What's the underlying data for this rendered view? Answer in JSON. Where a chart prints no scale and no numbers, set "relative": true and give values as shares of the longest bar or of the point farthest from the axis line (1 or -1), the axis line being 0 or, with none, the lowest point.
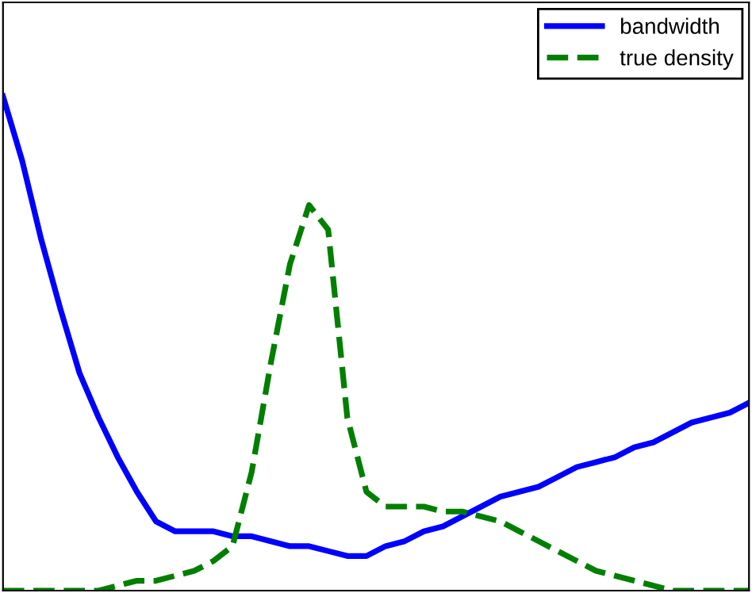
{
  "chart_data": {
    "type": "line",
    "relative": true,
    "tick_labels": false,
    "legend": "top right",
    "categories": [
      null,
      null,
      null,
      null,
      null,
      null,
      null,
      null,
      null,
      null,
      null,
      null,
      null,
      null,
      null,
      null,
      null,
      null,
      null,
      null,
      null,
      null,
      null,
      null,
      null,
      null,
      null,
      null,
      null,
      null,
      null,
      null,
      null,
      null,
      null,
      null,
      null,
      null,
      null,
      null
    ],
    "series": [
      {
        "name": "bandwidth",
        "color": "#0000ff",
        "line_style": "solid",
        "values": [
          1.0,
          0.87,
          0.71,
          0.57,
          0.44,
          0.35,
          0.27,
          0.2,
          0.14,
          0.12,
          0.12,
          0.12,
          0.11,
          0.11,
          0.1,
          0.09,
          0.09,
          0.08,
          0.07,
          0.07,
          0.09,
          0.1,
          0.12,
          0.13,
          0.15,
          0.17,
          0.19,
          0.2,
          0.21,
          0.23,
          0.25,
          0.26,
          0.27,
          0.29,
          0.3,
          0.32,
          0.34,
          0.35,
          0.36,
          0.38
        ]
      },
      {
        "name": "true density",
        "color": "#007f00",
        "line_style": "dashed",
        "values": [
          0.0,
          0.0,
          0.0,
          0.0,
          0.0,
          0.0,
          0.01,
          0.02,
          0.02,
          0.03,
          0.04,
          0.06,
          0.09,
          0.24,
          0.46,
          0.66,
          0.78,
          0.73,
          0.35,
          0.2,
          0.17,
          0.17,
          0.17,
          0.16,
          0.16,
          0.15,
          0.14,
          0.12,
          0.1,
          0.08,
          0.06,
          0.04,
          0.03,
          0.02,
          0.01,
          0.0,
          0.0,
          0.0,
          0.0,
          0.0
        ]
      }
    ]
  }
}
